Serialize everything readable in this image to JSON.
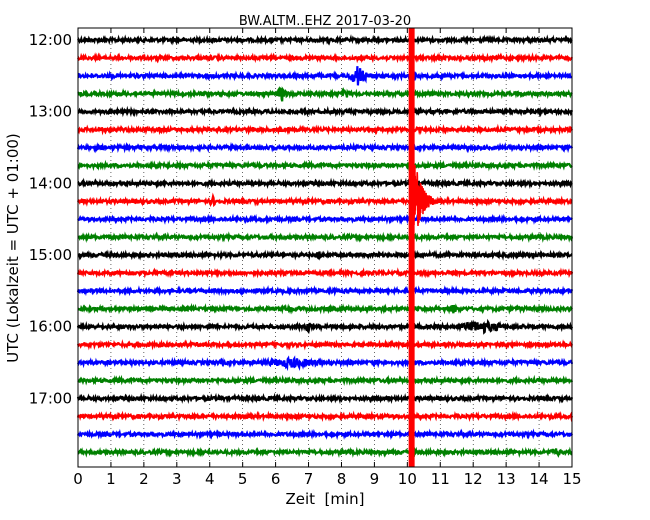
{
  "chart_data": {
    "type": "line",
    "title": "BW.ALTM..EHZ 2017-03-20",
    "xlabel": "Zeit  [min]",
    "ylabel": "UTC (Lokalzeit = UTC + 01:00)",
    "xlim": [
      0,
      15
    ],
    "x_ticks": [
      "0",
      "1",
      "2",
      "3",
      "4",
      "5",
      "6",
      "7",
      "8",
      "9",
      "10",
      "11",
      "12",
      "13",
      "14",
      "15"
    ],
    "y_ticks": [
      "12:00",
      "13:00",
      "14:00",
      "15:00",
      "16:00",
      "17:00"
    ],
    "grid": "vertical dotted",
    "trace_colors": [
      "#000000",
      "#ff0000",
      "#0000ff",
      "#008000"
    ],
    "series": [
      {
        "values": [
          "12:00",
          0
        ]
      },
      {
        "values": [
          "12:15",
          0
        ]
      },
      {
        "values": [
          "12:30",
          0
        ]
      },
      {
        "values": [
          "12:45",
          0
        ]
      },
      {
        "values": [
          "13:00",
          0
        ]
      },
      {
        "values": [
          "13:15",
          0
        ]
      },
      {
        "values": [
          "13:30",
          0
        ]
      },
      {
        "values": [
          "13:45",
          0
        ]
      },
      {
        "values": [
          "14:00",
          0
        ]
      },
      {
        "values": [
          "14:15",
          0
        ]
      },
      {
        "values": [
          "14:30",
          0
        ]
      },
      {
        "values": [
          "14:45",
          0
        ]
      },
      {
        "values": [
          "15:00",
          0
        ]
      },
      {
        "values": [
          "15:15",
          0
        ]
      },
      {
        "values": [
          "15:30",
          0
        ]
      },
      {
        "values": [
          "15:45",
          0
        ]
      },
      {
        "values": [
          "16:00",
          0
        ]
      },
      {
        "values": [
          "16:15",
          0
        ]
      },
      {
        "values": [
          "16:30",
          0
        ]
      },
      {
        "values": [
          "16:45",
          0
        ]
      },
      {
        "values": [
          "17:00",
          0
        ]
      },
      {
        "values": [
          "17:15",
          0
        ]
      },
      {
        "values": [
          "17:30",
          0
        ]
      },
      {
        "values": [
          "17:45",
          0
        ]
      }
    ],
    "events": [
      {
        "trace": 2,
        "start_min": 8.2,
        "end_min": 8.8,
        "amplitude": 0.8
      },
      {
        "trace": 3,
        "start_min": 6.0,
        "end_min": 6.4,
        "amplitude": 0.5
      },
      {
        "trace": 3,
        "start_min": 8.0,
        "end_min": 8.3,
        "amplitude": 0.3
      },
      {
        "trace": 9,
        "start_min": 4.0,
        "end_min": 4.2,
        "amplitude": 0.3
      },
      {
        "trace": 12,
        "start_min": 7.2,
        "end_min": 7.4,
        "amplitude": 0.3
      },
      {
        "trace": 15,
        "start_min": 11.3,
        "end_min": 11.5,
        "amplitude": 0.3
      },
      {
        "trace": 16,
        "start_min": 6.9,
        "end_min": 7.1,
        "amplitude": 0.4
      },
      {
        "trace": 16,
        "start_min": 11.5,
        "end_min": 13.0,
        "amplitude": 0.4
      },
      {
        "trace": 18,
        "start_min": 5.5,
        "end_min": 7.5,
        "amplitude": 0.3
      },
      {
        "trace": 23,
        "start_min": 14.3,
        "end_min": 14.7,
        "amplitude": 0.25
      }
    ],
    "large_event": {
      "trace": 9,
      "start_min": 10.1,
      "end_min": 10.8,
      "color": "#ff0000"
    }
  }
}
